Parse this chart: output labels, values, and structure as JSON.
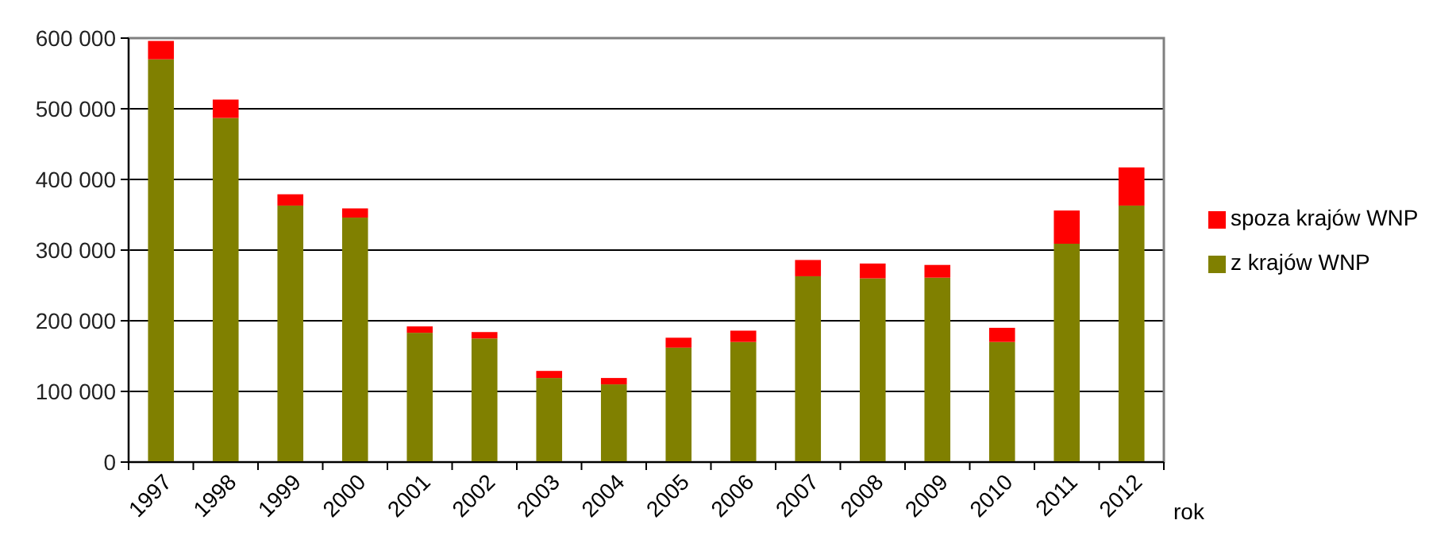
{
  "chart_data": {
    "type": "bar",
    "stacked": true,
    "xlabel": "rok",
    "categories": [
      "1997",
      "1998",
      "1999",
      "2000",
      "2001",
      "2002",
      "2003",
      "2004",
      "2005",
      "2006",
      "2007",
      "2008",
      "2009",
      "2010",
      "2011",
      "2012"
    ],
    "series": [
      {
        "name": "z krajów WNP",
        "color": "#808000",
        "values": [
          570000,
          487000,
          363000,
          346000,
          183000,
          175000,
          119000,
          110000,
          162000,
          170000,
          263000,
          260000,
          261000,
          170000,
          309000,
          363000
        ]
      },
      {
        "name": "spoza krajów WNP",
        "color": "#ff0000",
        "values": [
          26000,
          26000,
          16000,
          13000,
          9000,
          9000,
          10000,
          9000,
          14000,
          16000,
          23000,
          21000,
          18000,
          20000,
          47000,
          54000
        ]
      }
    ],
    "ylim": [
      0,
      600000
    ],
    "yticks": [
      {
        "value": 0,
        "label": "0"
      },
      {
        "value": 100000,
        "label": "100 000"
      },
      {
        "value": 200000,
        "label": "200 000"
      },
      {
        "value": 300000,
        "label": "300 000"
      },
      {
        "value": 400000,
        "label": "400 000"
      },
      {
        "value": 500000,
        "label": "500 000"
      },
      {
        "value": 600000,
        "label": "600 000"
      }
    ],
    "grid": "y",
    "legend": "right"
  }
}
